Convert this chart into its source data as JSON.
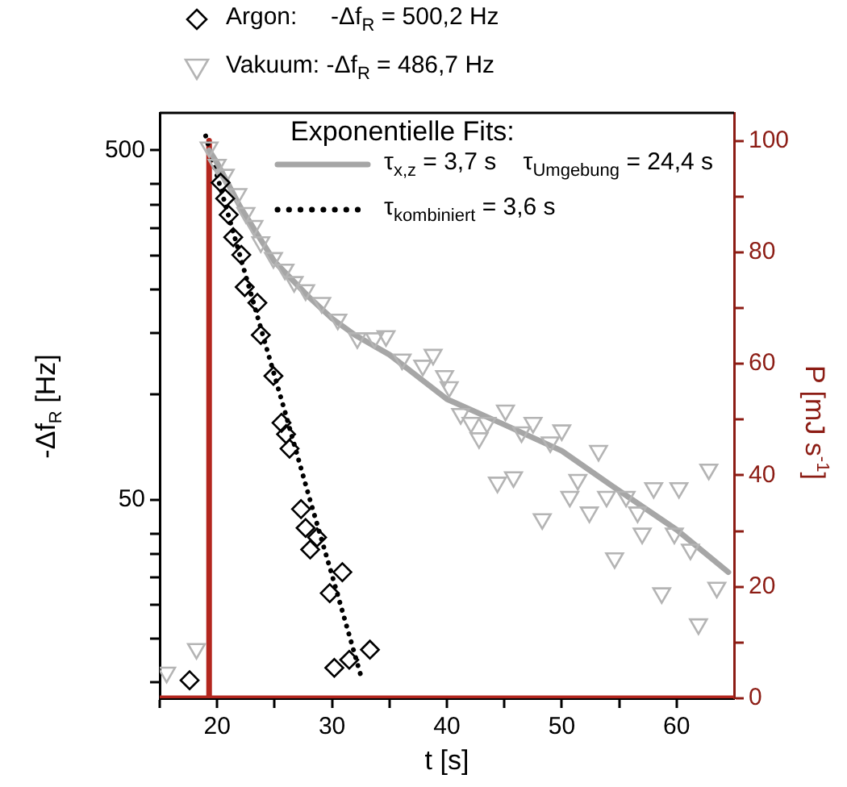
{
  "chart_data": {
    "type": "scatter",
    "xlabel": "t [s]",
    "ylabel": "-Δf$_{R}$ [Hz]",
    "y2label": "P [mJ s$^{-1}$]",
    "legend": "top",
    "legend_title": "Exponentielle Fits:",
    "grid": false,
    "log": "y",
    "xlim": [
      15,
      65
    ],
    "xticks": [
      {
        "value": 15,
        "label": null
      },
      20,
      {
        "value": 25,
        "label": null
      },
      30,
      {
        "value": 35,
        "label": null
      },
      40,
      {
        "value": 45,
        "label": null
      },
      50,
      {
        "value": 55,
        "label": null
      },
      60
    ],
    "ylim": [
      13.5,
      640
    ],
    "yticks": [
      {
        "value": 15,
        "label": null
      },
      {
        "value": 20,
        "label": null
      },
      {
        "value": 25,
        "label": null
      },
      {
        "value": 30,
        "label": null
      },
      {
        "value": 35,
        "label": null
      },
      {
        "value": 40,
        "label": null
      },
      50,
      {
        "value": 100,
        "label": null
      },
      {
        "value": 150,
        "label": null
      },
      {
        "value": 200,
        "label": null
      },
      {
        "value": 250,
        "label": null
      },
      {
        "value": 300,
        "label": null
      },
      {
        "value": 350,
        "label": null
      },
      {
        "value": 400,
        "label": null
      },
      500
    ],
    "y2lim": [
      0,
      105
    ],
    "y2ticks": [
      0,
      {
        "value": 10,
        "label": null
      },
      20,
      {
        "value": 30,
        "label": null
      },
      40,
      {
        "value": 50,
        "label": null
      },
      60,
      {
        "value": 70,
        "label": null
      },
      80,
      {
        "value": 90,
        "label": null
      },
      100
    ],
    "series": [
      {
        "name": "Argon:     -Δf$_{R}$ = 500,2 Hz",
        "marker": "diamond",
        "color": "#000000",
        "x": [
          17.6,
          20.3,
          20.7,
          21.0,
          21.4,
          22.1,
          22.4,
          23.5,
          23.8,
          24.9,
          25.6,
          26.0,
          26.3,
          27.3,
          27.7,
          28.7,
          28.1,
          30.9,
          29.8,
          33.3,
          31.5,
          30.2
        ],
        "values": [
          15.2,
          404,
          364,
          327,
          282,
          251,
          203,
          183,
          148,
          113,
          83,
          77,
          70,
          47,
          41.5,
          39,
          36,
          31,
          27,
          18.6,
          17.4,
          16.5
        ]
      },
      {
        "name": "Vakuum: -Δf$_{R}$ = 486,7 Hz",
        "marker": "triangle",
        "color": "#b4b4b4",
        "x": [
          15.6,
          18.2,
          19.3,
          20.0,
          20.7,
          21.8,
          22.5,
          23.2,
          23.8,
          24.9,
          25.9,
          26.7,
          27.7,
          29.1,
          30.5,
          32.2,
          33.7,
          34.7,
          36.1,
          37.9,
          38.8,
          39.8,
          40.2,
          41.2,
          42.1,
          42.8,
          43.5,
          45.1,
          44.4,
          45.8,
          46.5,
          47.5,
          48.3,
          49.0,
          50.0,
          50.7,
          51.4,
          52.4,
          53.2,
          53.9,
          54.6,
          55.6,
          56.6,
          57.0,
          58.0,
          58.7,
          59.8,
          60.2,
          61.2,
          61.9,
          62.8,
          63.5
        ],
        "values": [
          16,
          18.7,
          510,
          455,
          426,
          375,
          331,
          304,
          273,
          246,
          228,
          210,
          199,
          183,
          164,
          145,
          145,
          147,
          126,
          121,
          130,
          113,
          105,
          88,
          83,
          75,
          83,
          90,
          56,
          58,
          78,
          83,
          44,
          73,
          79,
          51,
          57,
          46,
          69,
          51,
          34,
          51,
          46,
          40,
          54,
          27,
          40,
          54,
          36,
          22,
          61,
          28
        ]
      },
      {
        "name": "τ$_{x,z}$ = 3,7 s    τ$_{Umgebung}$ = 24,4 s",
        "type": "line",
        "marker": "none",
        "line_style": "solid",
        "color": "#a6a6a6",
        "x": [
          19.3,
          20,
          22,
          25,
          28,
          30,
          32,
          35,
          40,
          45,
          50,
          55,
          60,
          64.5
        ],
        "values": [
          500,
          460,
          345,
          240,
          190,
          165,
          148,
          130,
          97,
          82,
          69,
          53,
          41,
          31
        ]
      },
      {
        "name": "τ$_{kombiniert}$ = 3,6 s",
        "type": "line",
        "marker": "none",
        "line_style": "dotted",
        "color": "#000000",
        "x": [
          19,
          20,
          22,
          24,
          26,
          28,
          30,
          32.6
        ],
        "values": [
          550,
          422,
          249,
          147,
          87,
          51,
          30.4,
          15.3
        ]
      },
      {
        "type": "line",
        "marker": "none",
        "line_style": "solid",
        "axis": "y2",
        "color": "#b3261e",
        "x": [
          15,
          19.3,
          19.3,
          19.3,
          65
        ],
        "values": [
          0,
          0,
          100,
          0,
          0
        ]
      }
    ]
  }
}
